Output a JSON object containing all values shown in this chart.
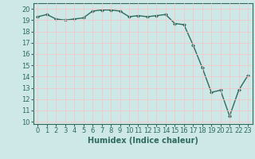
{
  "x": [
    0,
    1,
    2,
    3,
    4,
    5,
    6,
    7,
    8,
    9,
    10,
    11,
    12,
    13,
    14,
    15,
    16,
    17,
    18,
    19,
    20,
    21,
    22,
    23
  ],
  "y": [
    19.3,
    19.5,
    19.1,
    19.0,
    19.1,
    19.2,
    19.8,
    19.9,
    19.9,
    19.8,
    19.3,
    19.4,
    19.3,
    19.4,
    19.5,
    18.7,
    18.6,
    16.8,
    14.8,
    12.6,
    12.8,
    10.5,
    12.8,
    14.1
  ],
  "line_color": "#2e6b5e",
  "marker": "D",
  "marker_size": 2.0,
  "bg_color": "#cde8e6",
  "grid_color": "#f0c8c8",
  "xlabel": "Humidex (Indice chaleur)",
  "ylim": [
    9.8,
    20.5
  ],
  "xlim": [
    -0.5,
    23.5
  ],
  "yticks": [
    10,
    11,
    12,
    13,
    14,
    15,
    16,
    17,
    18,
    19,
    20
  ],
  "xticks": [
    0,
    1,
    2,
    3,
    4,
    5,
    6,
    7,
    8,
    9,
    10,
    11,
    12,
    13,
    14,
    15,
    16,
    17,
    18,
    19,
    20,
    21,
    22,
    23
  ],
  "tick_label_fontsize": 6.0,
  "xlabel_fontsize": 7.0,
  "linewidth": 1.0
}
